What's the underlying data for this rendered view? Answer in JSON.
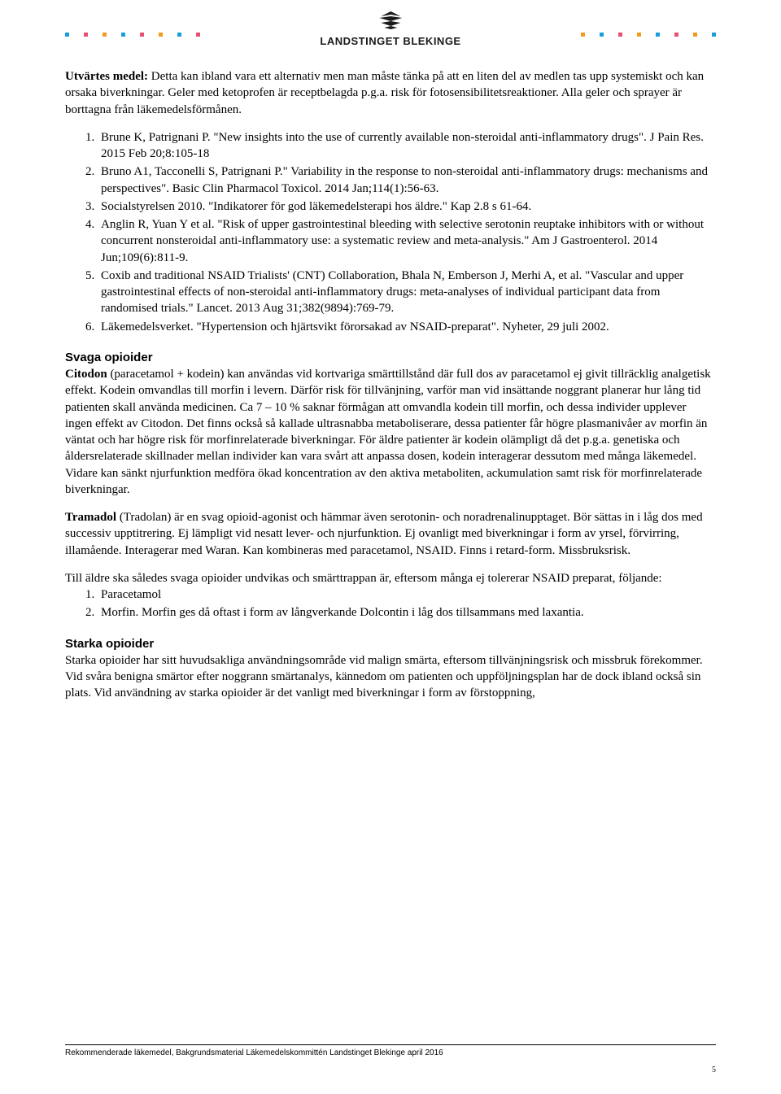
{
  "header": {
    "logo_text": "LANDSTINGET BLEKINGE",
    "dot_colors_left": [
      "#1b9dd9",
      "#e94f6e",
      "#f39b1e",
      "#1b9dd9",
      "#e94f6e",
      "#f39b1e",
      "#1b9dd9",
      "#e94f6e"
    ],
    "dot_colors_right": [
      "#f39b1e",
      "#1b9dd9",
      "#e94f6e",
      "#f39b1e",
      "#1b9dd9",
      "#e94f6e",
      "#f39b1e",
      "#1b9dd9"
    ]
  },
  "section_utvartes": {
    "label": "Utvärtes medel:",
    "text": " Detta kan ibland vara ett alternativ men man måste tänka på att en liten del av medlen tas upp systemiskt och kan orsaka biverkningar. Geler med ketoprofen är receptbelagda p.g.a. risk för fotosensibilitetsreaktioner. Alla geler och sprayer är borttagna från läkemedelsförmånen."
  },
  "references": [
    "Brune K, Patrignani P. \"New insights into the use of currently available non-steroidal anti-inflammatory drugs\". J Pain Res. 2015 Feb 20;8:105-18",
    "Bruno A1, Tacconelli S, Patrignani P.\" Variability in the response to non-steroidal anti-inflammatory drugs: mechanisms and perspectives\". Basic Clin Pharmacol Toxicol. 2014 Jan;114(1):56-63.",
    "Socialstyrelsen 2010. \"Indikatorer för god läkemedelsterapi hos äldre.\" Kap 2.8 s 61-64.",
    "Anglin R, Yuan Y et al. \"Risk of upper gastrointestinal bleeding with selective serotonin reuptake inhibitors with or without concurrent nonsteroidal anti-inflammatory use: a systematic review and meta-analysis.\" Am J Gastroenterol. 2014 Jun;109(6):811-9.",
    "Coxib and traditional NSAID Trialists' (CNT) Collaboration, Bhala N, Emberson J, Merhi A, et al. \"Vascular and upper gastrointestinal effects of non-steroidal anti-inflammatory drugs: meta-analyses of individual participant data from randomised trials.\" Lancet. 2013 Aug 31;382(9894):769-79.",
    "Läkemedelsverket. \"Hypertension och hjärtsvikt förorsakad av NSAID-preparat\". Nyheter, 29 juli 2002."
  ],
  "svaga": {
    "heading": "Svaga opioider",
    "citodon_label": "Citodon",
    "citodon_text": " (paracetamol + kodein) kan användas vid kortvariga smärttillstånd där full dos av paracetamol ej givit tillräcklig analgetisk effekt. Kodein omvandlas till morfin i levern. Därför risk för tillvänjning, varför man vid insättande noggrant planerar hur lång tid patienten skall använda medicinen. Ca 7 – 10 % saknar förmågan att omvandla kodein till morfin, och dessa individer upplever ingen effekt av Citodon. Det finns också så kallade ultrasnabba metaboliserare, dessa patienter får högre plasmanivåer av morfin än väntat och har högre risk för morfinrelaterade biverkningar. För äldre patienter är kodein olämpligt då det p.g.a. genetiska och åldersrelaterade skillnader mellan individer kan vara svårt att anpassa dosen, kodein interagerar dessutom med många läkemedel. Vidare kan sänkt njurfunktion medföra ökad koncentration av den aktiva metaboliten, ackumulation samt risk för morfinrelaterade biverkningar.",
    "tramadol_label": "Tramadol",
    "tramadol_text": " (Tradolan) är en svag opioid-agonist och hämmar även serotonin- och noradrenalinupptaget. Bör sättas in i låg dos med successiv upptitrering. Ej lämpligt vid nesatt lever- och njurfunktion. Ej ovanligt med biverkningar i form av yrsel, förvirring, illamående. Interagerar med Waran. Kan kombineras med paracetamol, NSAID. Finns i retard-form. Missbruksrisk.",
    "aldre_text": "Till äldre ska således svaga opioider undvikas och smärttrappan är, eftersom många ej tolererar NSAID preparat, följande:",
    "aldre_list": [
      "Paracetamol",
      "Morfin. Morfin ges då oftast i form av långverkande Dolcontin i låg dos tillsammans med laxantia."
    ]
  },
  "starka": {
    "heading": "Starka opioider",
    "text": "Starka opioider har sitt huvudsakliga användningsområde vid malign smärta, eftersom tillvänjningsrisk och missbruk förekommer. Vid svåra benigna smärtor efter noggrann smärtanalys, kännedom om patienten och uppföljningsplan har de dock ibland också sin plats. Vid användning av starka opioider är det vanligt med biverkningar i form av förstoppning,"
  },
  "footer": {
    "text": "Rekommenderade läkemedel, Bakgrundsmaterial Läkemedelskommittén Landstinget Blekinge april 2016",
    "page": "5"
  }
}
